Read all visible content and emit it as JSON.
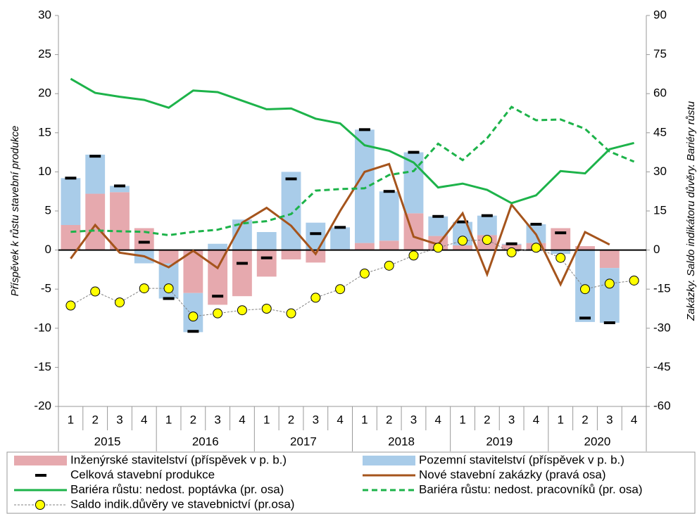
{
  "chart_data": {
    "type": "combo",
    "y_label": "Příspěvek k růstu stavební produkce",
    "y2_label": "Zakázky. Saldo indikátoru důvěry. Bariéry růstu",
    "categories": [
      "1",
      "2",
      "3",
      "4",
      "1",
      "2",
      "3",
      "4",
      "1",
      "2",
      "3",
      "4",
      "1",
      "2",
      "3",
      "4",
      "1",
      "2",
      "3",
      "4",
      "1",
      "2",
      "3",
      "4"
    ],
    "years": [
      "2015",
      "2016",
      "2017",
      "2018",
      "2019",
      "2020"
    ],
    "ylim": [
      -20,
      30
    ],
    "yticks": [
      -20,
      -15,
      -10,
      -5,
      0,
      5,
      10,
      15,
      20,
      25,
      30
    ],
    "y2lim": [
      -60,
      90
    ],
    "y2ticks": [
      -60,
      -45,
      -30,
      -15,
      0,
      15,
      30,
      45,
      60,
      75,
      90
    ],
    "series": [
      {
        "name": "Inženýrské stavitelství  (příspěvek v p. b.)",
        "kind": "bar",
        "color": "#e6a9ae",
        "values": [
          3.2,
          7.2,
          7.4,
          2.8,
          -1.7,
          -5.5,
          -7,
          -5.9,
          -3.4,
          -1.2,
          -1.6,
          0.1,
          0.9,
          1.2,
          4.7,
          1.8,
          0.6,
          1.9,
          0.7,
          0.9,
          2.8,
          0.5,
          -2.3,
          null
        ]
      },
      {
        "name": "Pozemní stavitelství (příspěvek v p. b.)",
        "kind": "bar",
        "color": "#a9cce9",
        "values": [
          6,
          5,
          0.8,
          -1.7,
          -4.5,
          -5,
          0.8,
          3.9,
          2.3,
          10,
          3.5,
          2.8,
          14.5,
          6.3,
          7.8,
          2.5,
          3,
          2.5,
          0.1,
          2.4,
          -0.5,
          -9.2,
          -7,
          null
        ]
      },
      {
        "name": "Celková stavební produkce",
        "kind": "marker",
        "color": "#000000",
        "values": [
          9.2,
          12,
          8.2,
          1,
          -6.2,
          -10.4,
          -5.9,
          -1.7,
          -1,
          9.1,
          2.1,
          2.9,
          15.4,
          7.5,
          12.5,
          4.3,
          3.6,
          4.4,
          0.8,
          3.3,
          2.2,
          -8.7,
          -9.3,
          null
        ]
      },
      {
        "name": "Nové stavební zakázky (pravá osa)",
        "kind": "line",
        "axis": "y2",
        "color": "#a5541c",
        "values": [
          -3.3,
          9.6,
          -1,
          -2.4,
          -6.6,
          -0.3,
          -6.9,
          10.5,
          16.2,
          9.3,
          -1.5,
          15,
          30,
          33,
          5.1,
          2.1,
          14.1,
          -9.3,
          17.4,
          6,
          -13.2,
          6.9,
          2.1,
          null
        ]
      },
      {
        "name": "Bariéra růstu: nedost. poptávka (pr. osa)",
        "kind": "line",
        "axis": "y2",
        "color": "#1db34a",
        "values": [
          65.7,
          60.3,
          58.8,
          57.6,
          54.6,
          61.2,
          60.6,
          57.3,
          54,
          54.3,
          50.4,
          48.6,
          40.2,
          38.1,
          33.6,
          24,
          25.5,
          23.1,
          18,
          21,
          30.3,
          29.4,
          38.7,
          41.1
        ]
      },
      {
        "name": "Bariéra růstu: nedost. pracovníků (pr. osa)",
        "kind": "line",
        "axis": "y2",
        "dash": true,
        "color": "#1db34a",
        "values": [
          7,
          7.5,
          7.2,
          7,
          5.7,
          7,
          7.8,
          10.2,
          11.1,
          13.8,
          22.8,
          23.4,
          23.7,
          28.8,
          30.3,
          40.8,
          34.5,
          42.9,
          54.9,
          49.8,
          50.1,
          46.5,
          37.8,
          33.9
        ]
      },
      {
        "name": "Saldo indik.důvěry ve stavebnictví (pr.osa)",
        "kind": "dots",
        "axis": "y2",
        "color": "#ffff00",
        "values": [
          -21.3,
          -15.9,
          -20.1,
          -14.7,
          -14.7,
          -25.5,
          -24.3,
          -23.1,
          -22.5,
          -24.3,
          -18.3,
          -15,
          -9,
          -6,
          -2.1,
          0.9,
          3.6,
          3.9,
          -0.9,
          0.9,
          -3,
          -15,
          -12.9,
          -11.7
        ]
      }
    ]
  }
}
